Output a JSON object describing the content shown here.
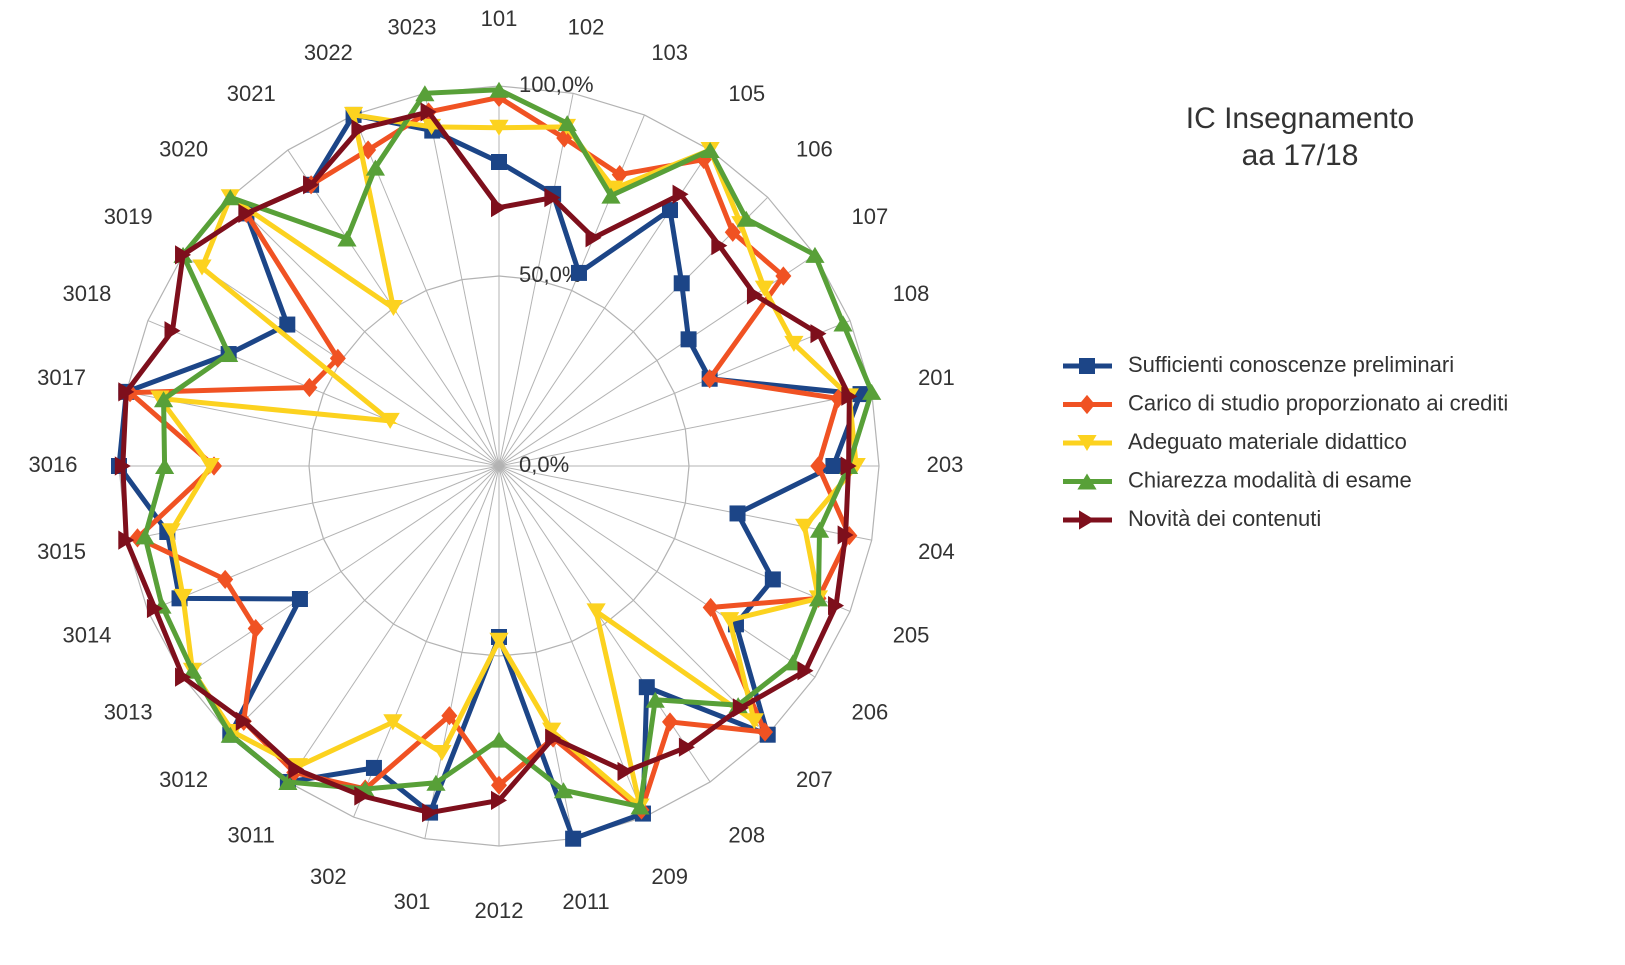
{
  "chart_data": {
    "type": "radar",
    "title": [
      "IC Insegnamento",
      "aa 17/18"
    ],
    "categories": [
      "101",
      "102",
      "103",
      "105",
      "106",
      "107",
      "108",
      "201",
      "203",
      "204",
      "205",
      "206",
      "207",
      "208",
      "209",
      "2011",
      "2012",
      "301",
      "302",
      "3011",
      "3012",
      "3013",
      "3014",
      "3015",
      "3016",
      "3017",
      "3018",
      "3019",
      "3020",
      "3021",
      "3022",
      "3023"
    ],
    "ylim": [
      0,
      100
    ],
    "yticks": [
      {
        "value": 0,
        "label": "0,0%"
      },
      {
        "value": 50,
        "label": "50,0%"
      },
      {
        "value": 100,
        "label": "100,0%"
      }
    ],
    "grid": true,
    "legend": "right",
    "series": [
      {
        "name": "Sufficienti conoscenze preliminari",
        "color": "#1c4587",
        "marker": "square",
        "values": [
          80,
          73,
          55,
          81,
          68,
          60,
          60,
          97,
          88,
          64,
          78,
          75,
          100,
          70,
          99,
          100,
          45,
          93,
          86,
          100,
          100,
          63,
          91,
          89,
          100,
          100,
          77,
          67,
          94,
          89,
          100,
          90
        ]
      },
      {
        "name": "Carico di studio proporzionato ai crediti",
        "color": "#f05223",
        "marker": "diamond",
        "values": [
          97,
          88,
          83,
          97,
          87,
          90,
          60,
          91,
          84,
          94,
          91,
          67,
          99,
          81,
          98,
          73,
          84,
          67,
          92,
          97,
          95,
          77,
          78,
          97,
          75,
          99,
          54,
          51,
          94,
          89,
          90,
          95
        ]
      },
      {
        "name": "Adeguato materiale didattico",
        "color": "#fcd21f",
        "marker": "triangle-down",
        "values": [
          89,
          91,
          79,
          100,
          90,
          84,
          84,
          94,
          94,
          82,
          91,
          73,
          95,
          46,
          97,
          71,
          46,
          77,
          73,
          95,
          99,
          97,
          90,
          88,
          76,
          91,
          31,
          94,
          100,
          50,
          100,
          91
        ]
      },
      {
        "name": "Chiarezza modalità di esame",
        "color": "#58a038",
        "marker": "triangle-up",
        "values": [
          99,
          92,
          77,
          100,
          92,
          100,
          98,
          100,
          92,
          86,
          91,
          93,
          89,
          74,
          97,
          87,
          72,
          85,
          92,
          100,
          100,
          97,
          96,
          95,
          88,
          90,
          77,
          100,
          100,
          72,
          85,
          100
        ]
      },
      {
        "name": "Novità dei contenuti",
        "color": "#7e0f1c",
        "marker": "triangle-right",
        "values": [
          68,
          72,
          65,
          86,
          82,
          81,
          91,
          94,
          92,
          93,
          96,
          97,
          90,
          89,
          87,
          73,
          88,
          93,
          94,
          96,
          95,
          100,
          98,
          100,
          99,
          100,
          93,
          100,
          94,
          89,
          96,
          95
        ]
      }
    ]
  }
}
